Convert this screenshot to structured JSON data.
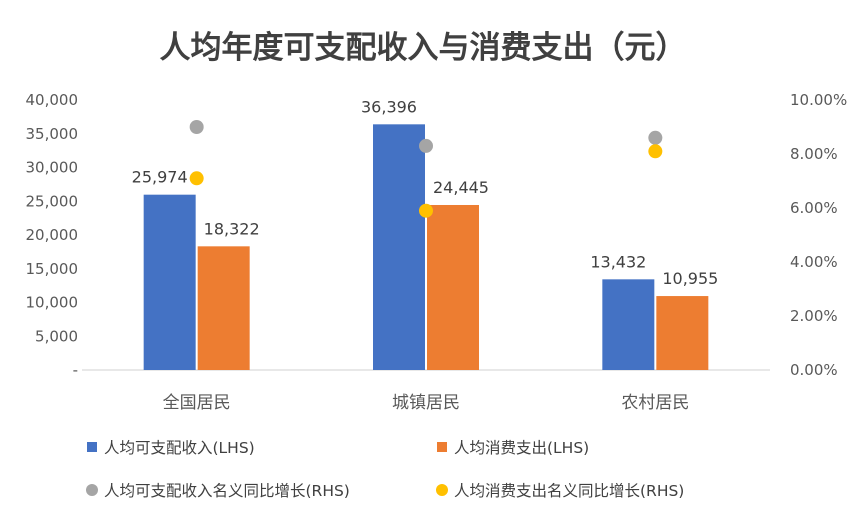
{
  "chart_data": {
    "type": "bar",
    "title": "人均年度可支配收入与消费支出（元）",
    "categories": [
      "全国居民",
      "城镇居民",
      "农村居民"
    ],
    "series": [
      {
        "name": "人均可支配收入(LHS)",
        "kind": "bar",
        "axis": "left",
        "color": "#4472C4",
        "values": [
          25974,
          36396,
          13432
        ],
        "labels": [
          "25,974",
          "36,396",
          "13,432"
        ]
      },
      {
        "name": "人均消费支出(LHS)",
        "kind": "bar",
        "axis": "left",
        "color": "#ED7D31",
        "values": [
          18322,
          24445,
          10955
        ],
        "labels": [
          "18,322",
          "24,445",
          "10,955"
        ]
      },
      {
        "name": "人均可支配收入名义同比增长(RHS)",
        "kind": "scatter",
        "axis": "right",
        "color": "#A5A5A5",
        "values": [
          0.09,
          0.083,
          0.086
        ]
      },
      {
        "name": "人均消费支出名义同比增长(RHS)",
        "kind": "scatter",
        "axis": "right",
        "color": "#FFC000",
        "values": [
          0.071,
          0.059,
          0.081
        ]
      }
    ],
    "ylim": [
      0,
      40000
    ],
    "y_ticks": [
      "-",
      "5,000",
      "10,000",
      "15,000",
      "20,000",
      "25,000",
      "30,000",
      "35,000",
      "40,000"
    ],
    "y2lim": [
      0,
      0.1
    ],
    "y2_ticks": [
      "0.00%",
      "2.00%",
      "4.00%",
      "6.00%",
      "8.00%",
      "10.00%"
    ],
    "grid": false,
    "legend_position": "bottom"
  }
}
